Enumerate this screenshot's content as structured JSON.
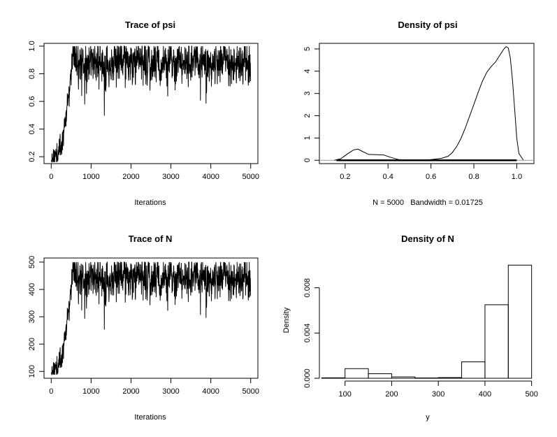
{
  "chart_data": [
    {
      "type": "line",
      "title": "Trace of psi",
      "xlabel": "Iterations",
      "ylabel": "",
      "xlim": [
        -180,
        5180
      ],
      "ylim": [
        0.15,
        1.02
      ],
      "xticks": [
        0,
        1000,
        2000,
        3000,
        4000,
        5000
      ],
      "xtick_labels": [
        "0",
        "1000",
        "2000",
        "3000",
        "4000",
        "5000"
      ],
      "yticks": [
        0.2,
        0.4,
        0.6,
        0.8,
        1.0
      ],
      "ytick_labels": [
        "0.2",
        "0.4",
        "0.6",
        "0.8",
        "1.0"
      ],
      "trace": {
        "n_iter": 5000,
        "start": 0.18,
        "burn_in_end": 560,
        "stationary_mean": 0.87,
        "min": 0.16,
        "max": 1.0,
        "stationary_min": 0.68
      },
      "grid": false,
      "color": "#000000"
    },
    {
      "type": "line",
      "title": "Density of psi",
      "xlabel": "N = 5000   Bandwidth = 0.01725",
      "ylabel": "",
      "xlim": [
        0.08,
        1.08
      ],
      "ylim": [
        -0.15,
        5.25
      ],
      "xticks": [
        0.2,
        0.4,
        0.6,
        0.8,
        1.0
      ],
      "xtick_labels": [
        "0.2",
        "0.4",
        "0.6",
        "0.8",
        "1.0"
      ],
      "yticks": [
        0,
        1,
        2,
        3,
        4,
        5
      ],
      "ytick_labels": [
        "0",
        "1",
        "2",
        "3",
        "4",
        "5"
      ],
      "x": [
        0.15,
        0.18,
        0.21,
        0.24,
        0.26,
        0.28,
        0.31,
        0.35,
        0.38,
        0.41,
        0.45,
        0.5,
        0.55,
        0.6,
        0.65,
        0.68,
        0.7,
        0.72,
        0.74,
        0.76,
        0.78,
        0.8,
        0.82,
        0.84,
        0.86,
        0.88,
        0.9,
        0.92,
        0.94,
        0.95,
        0.96,
        0.97,
        0.98,
        0.99,
        1.0,
        1.01,
        1.03
      ],
      "y": [
        0.0,
        0.07,
        0.28,
        0.47,
        0.5,
        0.4,
        0.26,
        0.25,
        0.24,
        0.14,
        0.03,
        0.01,
        0.01,
        0.03,
        0.09,
        0.18,
        0.35,
        0.62,
        0.98,
        1.45,
        1.98,
        2.5,
        3.05,
        3.55,
        3.95,
        4.2,
        4.4,
        4.7,
        5.0,
        5.1,
        5.05,
        4.6,
        3.6,
        2.3,
        1.0,
        0.3,
        0.02
      ],
      "rug_range": [
        0.16,
        1.0
      ],
      "zero_line": true,
      "grid": false,
      "color": "#000000"
    },
    {
      "type": "line",
      "title": "Trace of N",
      "xlabel": "Iterations",
      "ylabel": "",
      "xlim": [
        -180,
        5180
      ],
      "ylim": [
        75,
        515
      ],
      "xticks": [
        0,
        1000,
        2000,
        3000,
        4000,
        5000
      ],
      "xtick_labels": [
        "0",
        "1000",
        "2000",
        "3000",
        "4000",
        "5000"
      ],
      "yticks": [
        100,
        200,
        300,
        400,
        500
      ],
      "ytick_labels": [
        "100",
        "200",
        "300",
        "400",
        "500"
      ],
      "trace": {
        "n_iter": 5000,
        "start": 95,
        "burn_in_end": 560,
        "stationary_mean": 440,
        "min": 88,
        "max": 500,
        "stationary_min": 350
      },
      "grid": false,
      "color": "#000000"
    },
    {
      "type": "bar",
      "title": "Density of N",
      "xlabel": "y",
      "ylabel": "Density",
      "xlim": [
        45,
        505
      ],
      "ylim": [
        0,
        0.0102
      ],
      "xticks": [
        100,
        200,
        300,
        400,
        500
      ],
      "xtick_labels": [
        "100",
        "200",
        "300",
        "400",
        "500"
      ],
      "yticks": [
        0.0,
        0.004,
        0.008
      ],
      "ytick_labels": [
        "0.000",
        "0.004",
        "0.008"
      ],
      "bin_edges": [
        50,
        100,
        150,
        200,
        250,
        300,
        350,
        400,
        450,
        500
      ],
      "values": [
        4e-05,
        0.00085,
        0.0004,
        0.00012,
        3e-05,
        6e-05,
        0.00145,
        0.0065,
        0.01
      ],
      "grid": false,
      "color": "#000000"
    }
  ]
}
